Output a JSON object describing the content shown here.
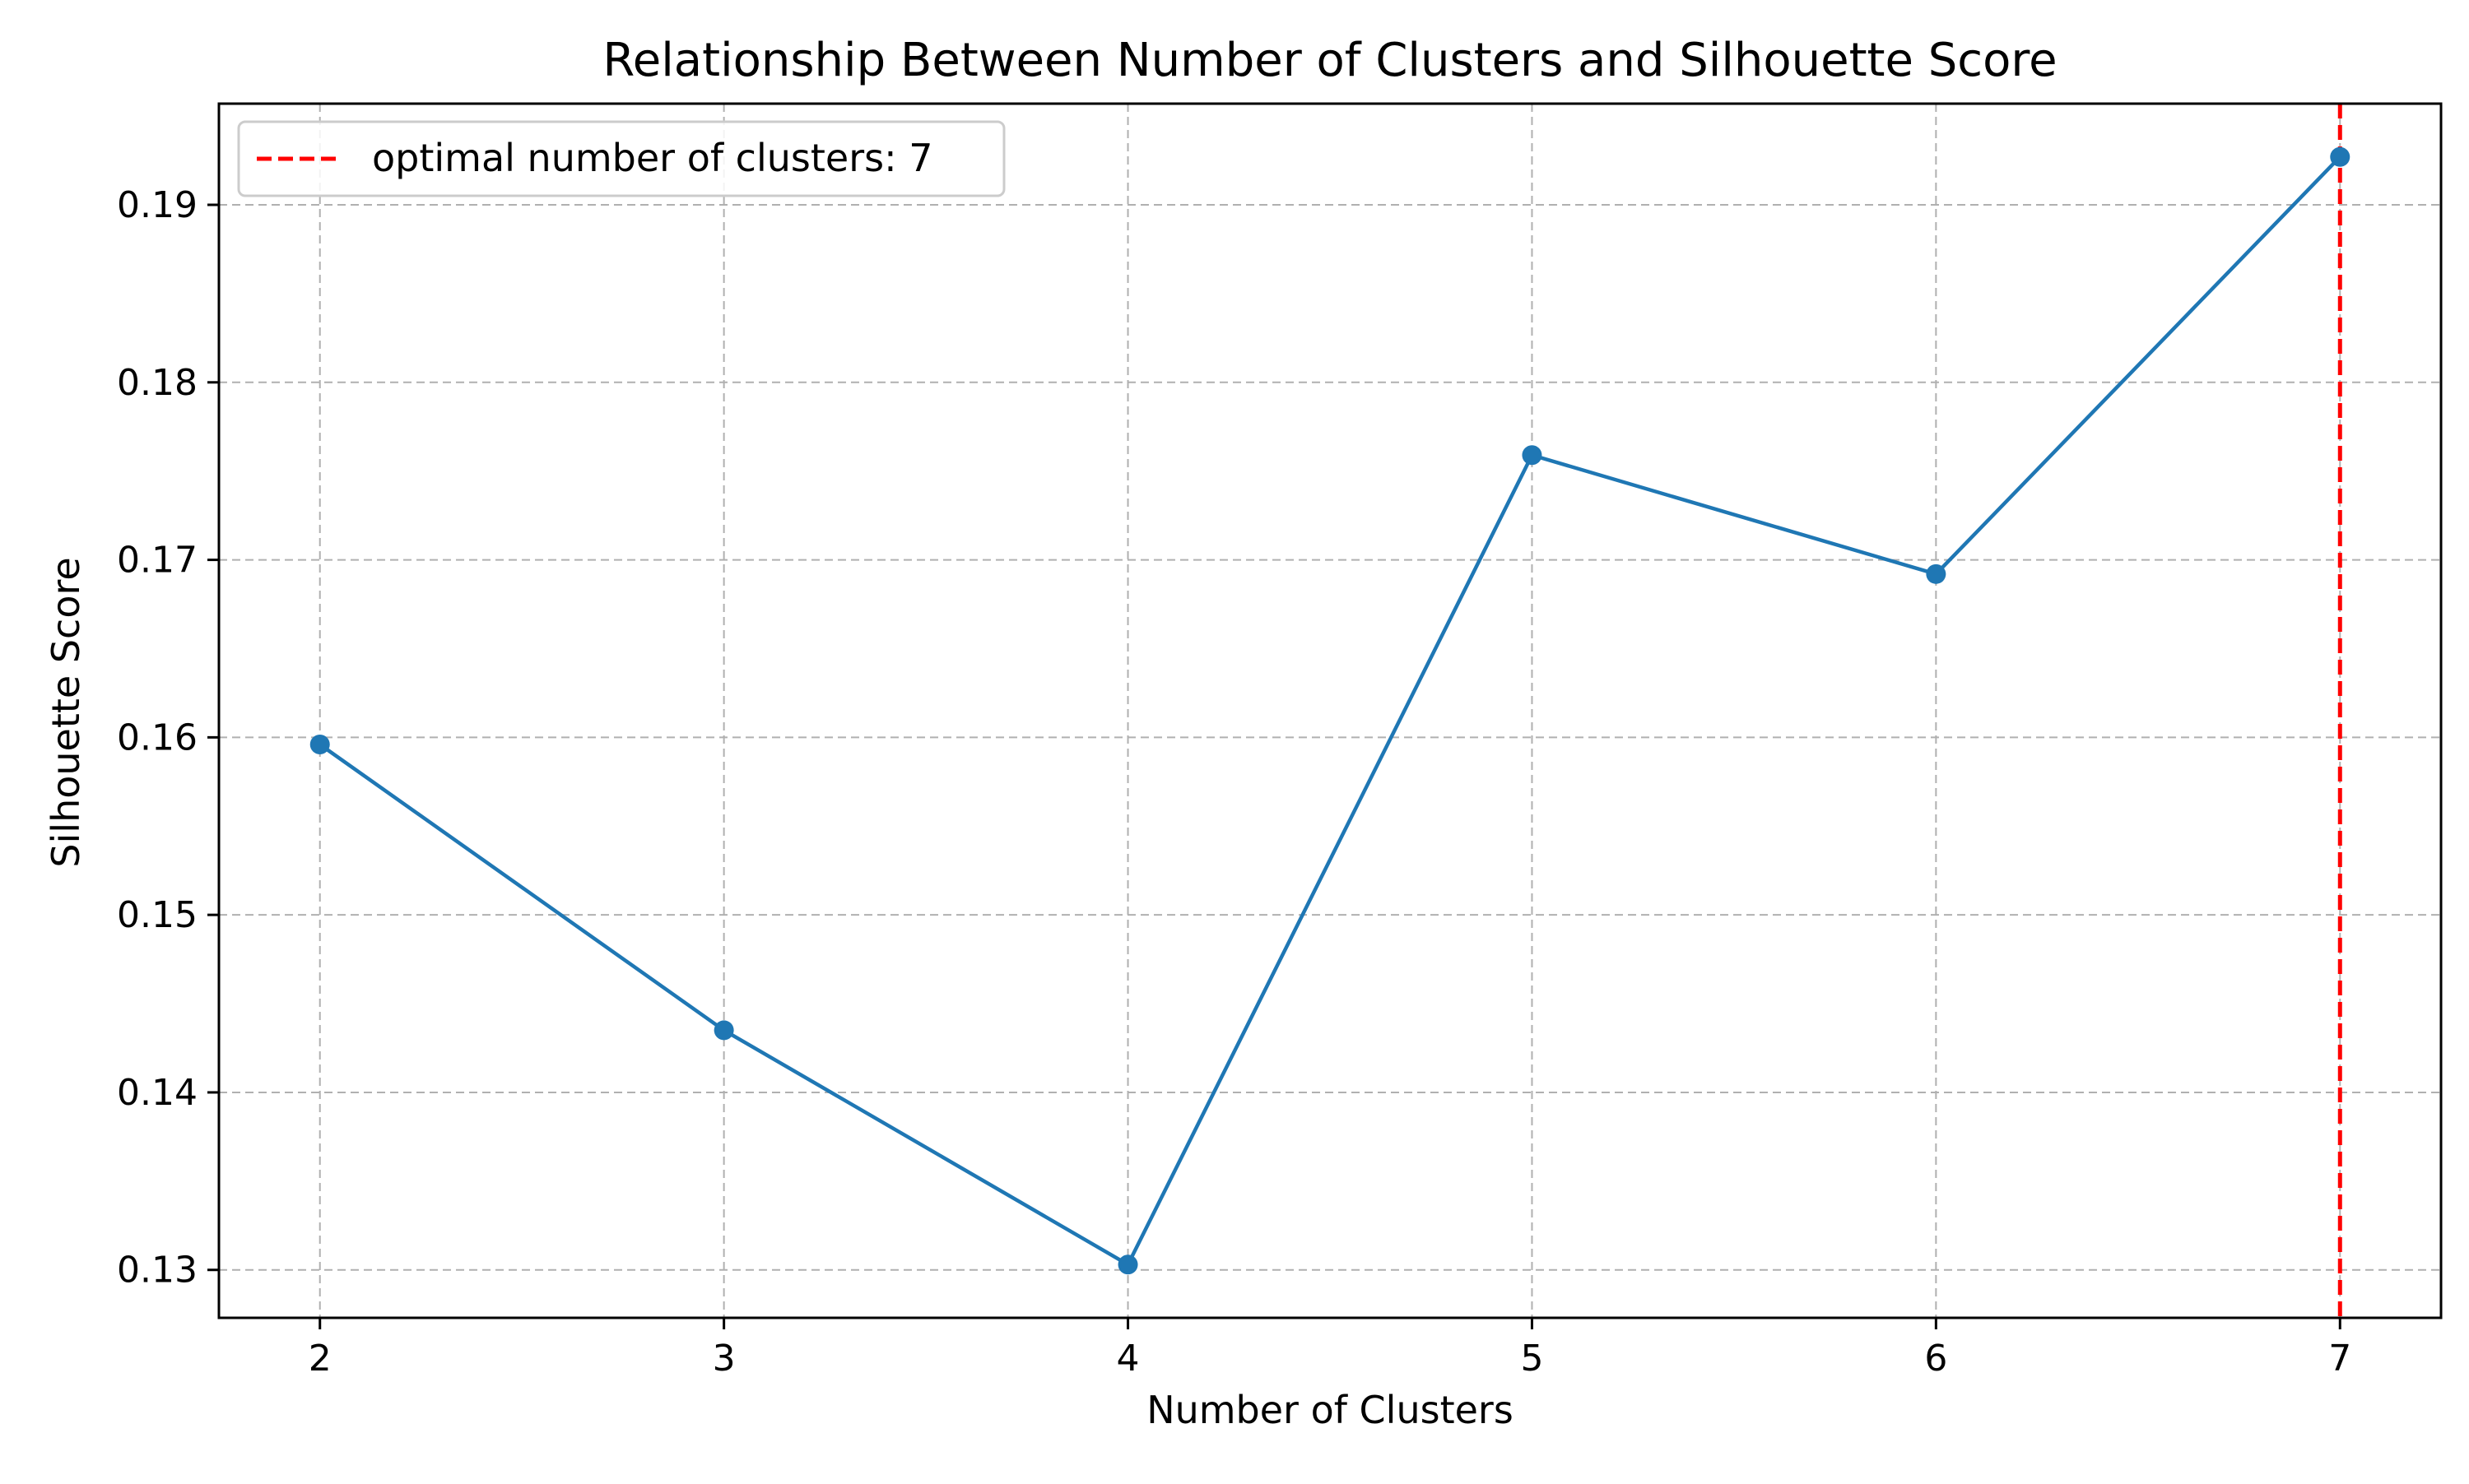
{
  "chart_data": {
    "type": "line",
    "title": "Relationship Between Number of Clusters and Silhouette Score",
    "xlabel": "Number of Clusters",
    "ylabel": "Silhouette Score",
    "x": [
      2,
      3,
      4,
      5,
      6,
      7
    ],
    "x_tick_labels": [
      "2",
      "3",
      "4",
      "5",
      "6",
      "7"
    ],
    "y_ticks": [
      0.13,
      0.14,
      0.15,
      0.16,
      0.17,
      0.18,
      0.19
    ],
    "y_tick_labels": [
      "0.13",
      "0.14",
      "0.15",
      "0.16",
      "0.17",
      "0.18",
      "0.19"
    ],
    "xlim": [
      1.75,
      7.25
    ],
    "ylim": [
      0.1273,
      0.1957
    ],
    "grid": true,
    "series": [
      {
        "values": [
          0.1596,
          0.1435,
          0.1303,
          0.1759,
          0.1692,
          0.1927
        ],
        "color": "#1f77b4",
        "marker": "circle"
      }
    ],
    "reference_lines": [
      {
        "orientation": "vertical",
        "x": 7,
        "style": "dashed",
        "color": "#ff0000",
        "label": "optimal number of clusters: 7"
      }
    ],
    "legend": {
      "position": "top-left",
      "entries": [
        "optimal number of clusters: 7"
      ]
    }
  }
}
